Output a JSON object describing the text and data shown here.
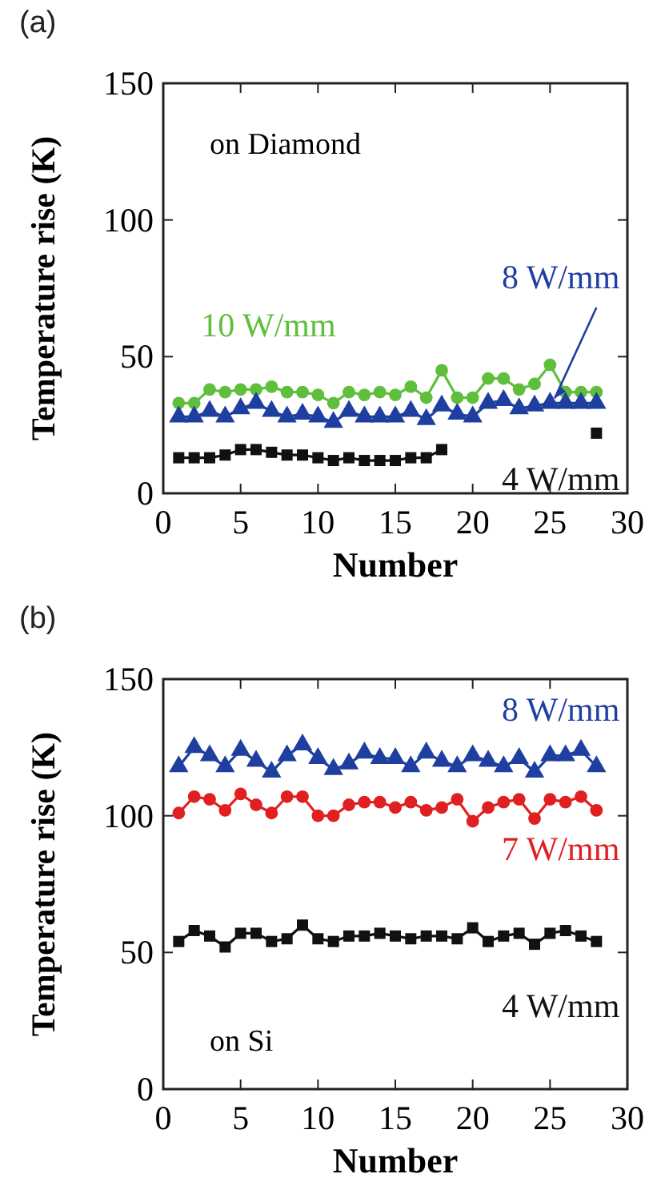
{
  "chart_data": [
    {
      "type": "line",
      "title": "(a)",
      "xlabel": "Number",
      "ylabel": "Temperature rise (K)",
      "xlim": [
        0,
        30
      ],
      "xticks": [
        0,
        5,
        10,
        15,
        20,
        25,
        30
      ],
      "ylim": [
        0,
        150
      ],
      "yticks": [
        0,
        50,
        100,
        150
      ],
      "grid": false,
      "line_style": "solid",
      "annotations": [
        "on Diamond"
      ],
      "x": [
        1,
        2,
        3,
        4,
        5,
        6,
        7,
        8,
        9,
        10,
        11,
        12,
        13,
        14,
        15,
        16,
        17,
        18,
        19,
        20,
        21,
        22,
        23,
        24,
        25,
        26,
        27,
        28
      ],
      "series": [
        {
          "name": "10 W/mm",
          "color": "#5fbf3c",
          "marker": "circle",
          "values": [
            33,
            33,
            38,
            37,
            38,
            38,
            39,
            37,
            37,
            36,
            33,
            37,
            36,
            37,
            36,
            39,
            35,
            45,
            35,
            35,
            42,
            42,
            38,
            40,
            47,
            37,
            37,
            37
          ]
        },
        {
          "name": "8 W/mm",
          "color": "#1f3fa0",
          "marker": "triangle",
          "values": [
            28,
            28,
            30,
            28,
            31,
            33,
            30,
            28,
            29,
            28,
            26,
            30,
            28,
            28,
            28,
            30,
            27,
            32,
            29,
            28,
            33,
            34,
            31,
            32,
            33,
            33,
            33,
            33
          ]
        },
        {
          "name": "4 W/mm",
          "color": "#111111",
          "marker": "square",
          "values": [
            13,
            13,
            13,
            14,
            16,
            16,
            15,
            14,
            14,
            13,
            12,
            13,
            12,
            12,
            12,
            13,
            13,
            16,
            null,
            null,
            null,
            null,
            null,
            null,
            null,
            null,
            null,
            22
          ]
        }
      ]
    },
    {
      "type": "line",
      "title": "(b)",
      "xlabel": "Number",
      "ylabel": "Temperature rise (K)",
      "xlim": [
        0,
        30
      ],
      "xticks": [
        0,
        5,
        10,
        15,
        20,
        25,
        30
      ],
      "ylim": [
        0,
        150
      ],
      "yticks": [
        0,
        50,
        100,
        150
      ],
      "grid": false,
      "line_style": "solid",
      "annotations": [
        "on Si"
      ],
      "x": [
        1,
        2,
        3,
        4,
        5,
        6,
        7,
        8,
        9,
        10,
        11,
        12,
        13,
        14,
        15,
        16,
        17,
        18,
        19,
        20,
        21,
        22,
        23,
        24,
        25,
        26,
        27,
        28
      ],
      "series": [
        {
          "name": "8 W/mm",
          "color": "#1f3fa0",
          "marker": "triangle",
          "values": [
            118,
            125,
            122,
            118,
            124,
            120,
            116,
            122,
            126,
            121,
            117,
            119,
            123,
            121,
            121,
            118,
            123,
            120,
            118,
            122,
            120,
            118,
            121,
            116,
            122,
            122,
            124,
            118
          ]
        },
        {
          "name": "7 W/mm",
          "color": "#e02020",
          "marker": "circle",
          "values": [
            101,
            107,
            106,
            102,
            108,
            104,
            101,
            107,
            107,
            100,
            100,
            104,
            105,
            105,
            103,
            105,
            102,
            103,
            106,
            98,
            103,
            105,
            106,
            99,
            106,
            105,
            107,
            102
          ]
        },
        {
          "name": "4 W/mm",
          "color": "#111111",
          "marker": "square",
          "values": [
            54,
            58,
            56,
            52,
            57,
            57,
            54,
            55,
            60,
            55,
            54,
            56,
            56,
            57,
            56,
            55,
            56,
            56,
            55,
            59,
            54,
            56,
            57,
            53,
            57,
            58,
            56,
            54
          ]
        }
      ]
    }
  ]
}
